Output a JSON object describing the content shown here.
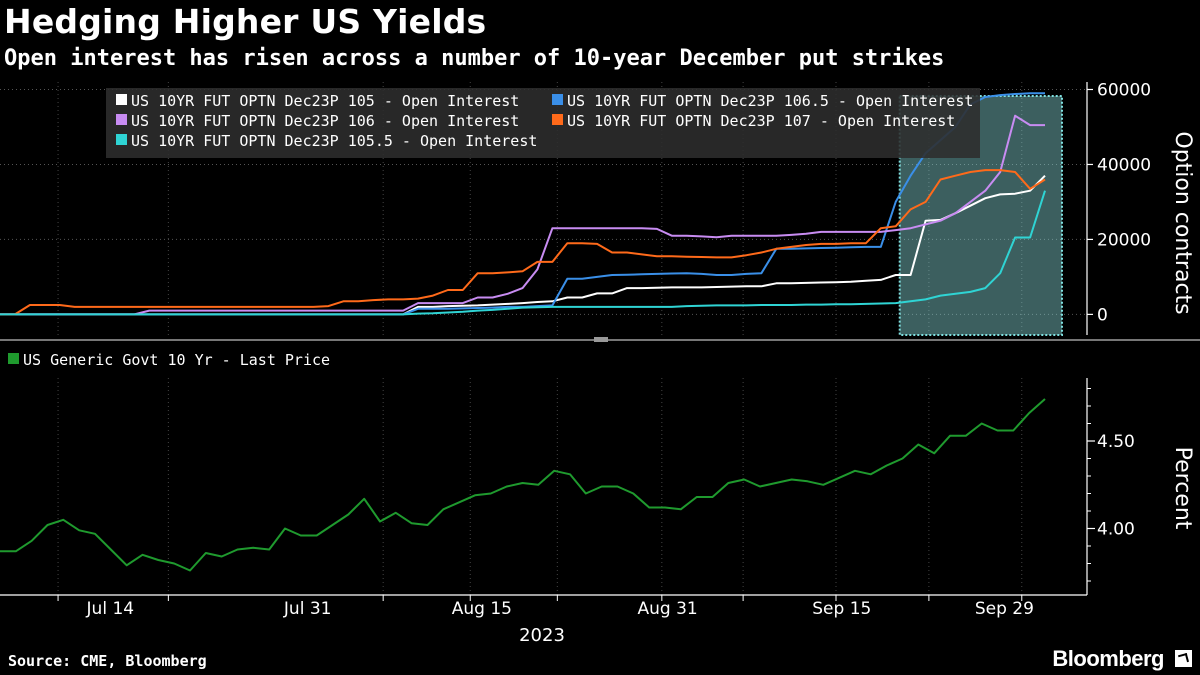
{
  "title": "Hedging Higher US Yields",
  "subtitle": "Open interest has risen across a number of 10-year December put strikes",
  "source": "Source: CME, Bloomberg",
  "brand": "Bloomberg",
  "chart_data": [
    {
      "type": "line",
      "ylabel": "Option contracts",
      "ylim": [
        -5500,
        62000
      ],
      "yticks": [
        0,
        20000,
        40000,
        60000
      ],
      "ytick_labels": [
        "0",
        "20000",
        "40000",
        "60000"
      ],
      "highlight": {
        "x_range": [
          60,
          69
        ],
        "color": "#7fe0e0"
      },
      "series": [
        {
          "name": "US 10YR FUT OPTN Dec23P 105 - Open Interest",
          "color": "#ffffff",
          "values": [
            0,
            0,
            0,
            0,
            0,
            0,
            0,
            0,
            0,
            0,
            0,
            0,
            0,
            0,
            0,
            0,
            0,
            0,
            0,
            0,
            0,
            0,
            0,
            0,
            0,
            0,
            0,
            0,
            2000,
            2000,
            2200,
            2300,
            2400,
            2600,
            2800,
            3000,
            3300,
            3500,
            4500,
            4500,
            5600,
            5600,
            7000,
            7000,
            7100,
            7200,
            7200,
            7200,
            7300,
            7400,
            7500,
            7500,
            8300,
            8300,
            8400,
            8500,
            8600,
            8700,
            9000,
            9200,
            10500,
            10500,
            25000,
            25200,
            27000,
            29000,
            31000,
            32000,
            32200,
            33000,
            37000
          ]
        },
        {
          "name": "US 10YR FUT OPTN Dec23P 106.5 - Open Interest",
          "color": "#3a8fe8",
          "values": [
            0,
            0,
            0,
            0,
            0,
            0,
            0,
            0,
            0,
            0,
            0,
            0,
            0,
            0,
            0,
            0,
            0,
            0,
            0,
            0,
            0,
            0,
            0,
            0,
            0,
            0,
            0,
            0,
            1500,
            1500,
            1500,
            1600,
            1700,
            1800,
            2000,
            2000,
            2200,
            2400,
            9500,
            9500,
            10000,
            10500,
            10600,
            10700,
            10800,
            10900,
            11000,
            10800,
            10500,
            10500,
            10800,
            11000,
            17500,
            17500,
            17600,
            17700,
            17800,
            17900,
            18000,
            18000,
            30000,
            37000,
            43000,
            46500,
            50000,
            56000,
            58000,
            58500,
            58800,
            59000,
            59000
          ]
        },
        {
          "name": "US 10YR FUT OPTN Dec23P 106 - Open Interest",
          "color": "#c88cf2",
          "values": [
            0,
            0,
            0,
            0,
            0,
            0,
            0,
            0,
            0,
            0,
            1000,
            1000,
            1000,
            1000,
            1000,
            1000,
            1000,
            1000,
            1000,
            1000,
            1000,
            1000,
            1000,
            1000,
            1000,
            1000,
            1000,
            1000,
            3000,
            3000,
            3000,
            3000,
            4500,
            4500,
            5500,
            7000,
            12000,
            23000,
            23000,
            23000,
            23000,
            23000,
            23000,
            23000,
            22800,
            21000,
            21000,
            20800,
            20600,
            21000,
            21000,
            21000,
            21000,
            21200,
            21500,
            22000,
            22000,
            22000,
            22000,
            22000,
            22500,
            23000,
            24000,
            25000,
            27000,
            30000,
            33000,
            38000,
            53000,
            50500,
            50500
          ]
        },
        {
          "name": "US 10YR FUT OPTN Dec23P 107 - Open Interest",
          "color": "#ff6a1a",
          "values": [
            0,
            0,
            2500,
            2500,
            2500,
            2000,
            2000,
            2000,
            2000,
            2000,
            2000,
            2000,
            2000,
            2000,
            2000,
            2000,
            2000,
            2000,
            2000,
            2000,
            2000,
            2000,
            2200,
            3500,
            3500,
            3800,
            4000,
            4000,
            4200,
            5000,
            6500,
            6500,
            11000,
            11000,
            11200,
            11500,
            14000,
            14000,
            19000,
            19000,
            18800,
            16500,
            16500,
            16000,
            15500,
            15500,
            15400,
            15300,
            15200,
            15200,
            15800,
            16500,
            17500,
            18000,
            18500,
            18800,
            18800,
            19000,
            19000,
            23000,
            23500,
            28000,
            30000,
            36000,
            37000,
            38000,
            38500,
            38500,
            38000,
            33500,
            36000
          ]
        },
        {
          "name": "US 10YR FUT OPTN Dec23P 105.5 - Open Interest",
          "color": "#2fd4d4",
          "values": [
            0,
            0,
            0,
            0,
            0,
            0,
            0,
            0,
            0,
            0,
            0,
            0,
            0,
            0,
            0,
            0,
            0,
            0,
            0,
            0,
            0,
            0,
            0,
            0,
            0,
            0,
            0,
            0,
            200,
            300,
            500,
            700,
            1000,
            1200,
            1500,
            1800,
            1900,
            2000,
            2000,
            2000,
            2000,
            2000,
            2000,
            2000,
            2000,
            2000,
            2200,
            2300,
            2400,
            2400,
            2400,
            2500,
            2500,
            2500,
            2600,
            2600,
            2700,
            2700,
            2800,
            2900,
            3000,
            3500,
            4000,
            5000,
            5500,
            6000,
            7000,
            11000,
            20500,
            20500,
            33000
          ]
        }
      ]
    },
    {
      "type": "line",
      "ylabel": "Percent",
      "ylim": [
        3.62,
        4.86
      ],
      "yticks": [
        4.0,
        4.5
      ],
      "ytick_labels": [
        "4.00",
        "4.50"
      ],
      "series": [
        {
          "name": "US Generic Govt 10 Yr - Last Price",
          "color": "#1f9a2e",
          "values": [
            3.87,
            3.87,
            3.93,
            4.02,
            4.05,
            3.99,
            3.97,
            3.88,
            3.79,
            3.85,
            3.82,
            3.8,
            3.76,
            3.86,
            3.84,
            3.88,
            3.89,
            3.88,
            4.0,
            3.96,
            3.96,
            4.02,
            4.08,
            4.17,
            4.04,
            4.09,
            4.03,
            4.02,
            4.11,
            4.15,
            4.19,
            4.2,
            4.24,
            4.26,
            4.25,
            4.33,
            4.31,
            4.2,
            4.24,
            4.24,
            4.2,
            4.12,
            4.12,
            4.11,
            4.18,
            4.18,
            4.26,
            4.28,
            4.24,
            4.26,
            4.28,
            4.27,
            4.25,
            4.29,
            4.33,
            4.31,
            4.36,
            4.4,
            4.48,
            4.43,
            4.53,
            4.53,
            4.6,
            4.56,
            4.56,
            4.66,
            4.74
          ]
        }
      ]
    }
  ],
  "x_axis": {
    "tick_labels": [
      "Jul 14",
      "Jul 31",
      "Aug 15",
      "Aug 31",
      "Sep 15",
      "Sep 29"
    ],
    "year_label": "2023"
  }
}
